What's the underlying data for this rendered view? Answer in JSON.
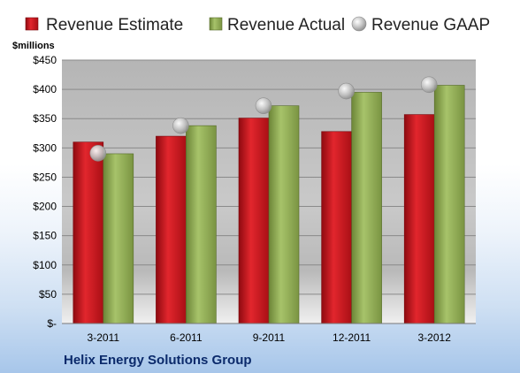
{
  "chart_data": {
    "type": "bar",
    "title": "",
    "xlabel": "",
    "ylabel": "$millions",
    "ylim": [
      0,
      450
    ],
    "yticks": [
      0,
      50,
      100,
      150,
      200,
      250,
      300,
      350,
      400,
      450
    ],
    "ytick_labels": [
      "$-",
      "$50",
      "$100",
      "$150",
      "$200",
      "$250",
      "$300",
      "$350",
      "$400",
      "$450"
    ],
    "categories": [
      "3-2011",
      "6-2011",
      "9-2011",
      "12-2011",
      "3-2012"
    ],
    "series": [
      {
        "name": "Revenue Estimate",
        "kind": "bar",
        "color": "#c8161d",
        "values": [
          310,
          320,
          351,
          328,
          357
        ]
      },
      {
        "name": "Revenue Actual",
        "kind": "bar",
        "color": "#8fa956",
        "values": [
          290,
          338,
          372,
          395,
          407
        ]
      },
      {
        "name": "Revenue GAAP",
        "kind": "marker",
        "color": "#b8b8b8",
        "values": [
          291,
          338,
          372,
          397,
          408
        ]
      }
    ],
    "legend_position": "top",
    "grid": true
  },
  "footer": {
    "company": "Helix Energy Solutions Group"
  },
  "colors": {
    "plot_bg_top": "#b9b9b9",
    "plot_bg_bottom": "#f2f2f2",
    "gridline": "#8a8a8a",
    "footer_text": "#0b2a6b"
  }
}
